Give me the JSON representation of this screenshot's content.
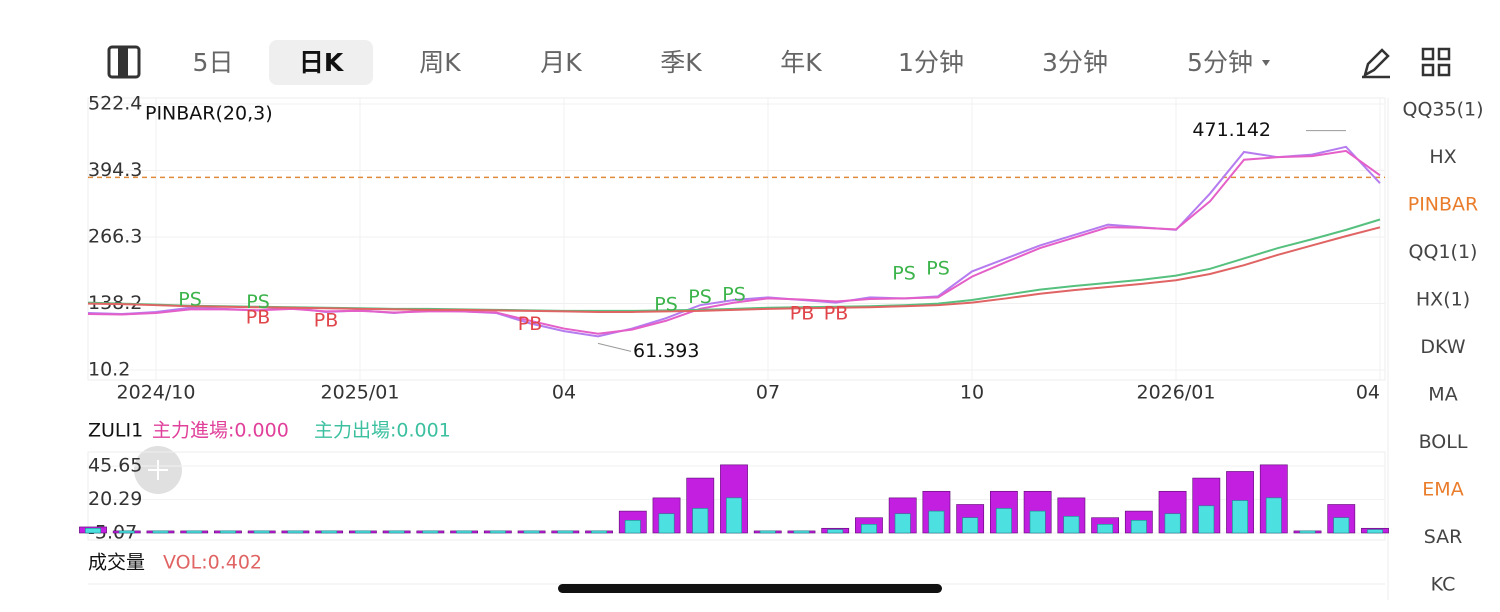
{
  "toolbar": {
    "tabs": [
      "5日",
      "日K",
      "周K",
      "月K",
      "季K",
      "年K",
      "1分钟",
      "3分钟",
      "5分钟"
    ],
    "selected": 1
  },
  "indicators": [
    {
      "label": "QQ35(1)",
      "active": false
    },
    {
      "label": "HX",
      "active": false
    },
    {
      "label": "PINBAR",
      "active": true
    },
    {
      "label": "QQ1(1)",
      "active": false
    },
    {
      "label": "HX(1)",
      "active": false
    },
    {
      "label": "DKW",
      "active": false
    },
    {
      "label": "MA",
      "active": false
    },
    {
      "label": "BOLL",
      "active": false
    },
    {
      "label": "EMA",
      "active": true
    },
    {
      "label": "SAR",
      "active": false
    },
    {
      "label": "KC",
      "active": false
    }
  ],
  "volume_panel": {
    "title": "成交量",
    "legend": "VOL:0.402"
  },
  "chart_data": [
    {
      "type": "line",
      "title": "PINBAR(20,3)",
      "categories": [
        null,
        null,
        "2024/10",
        null,
        null,
        null,
        null,
        null,
        "2025/01",
        null,
        null,
        null,
        null,
        null,
        "04",
        null,
        null,
        null,
        null,
        null,
        "07",
        null,
        null,
        null,
        null,
        null,
        "10",
        null,
        null,
        null,
        null,
        null,
        "2026/01",
        null,
        null,
        null,
        null,
        null,
        "04"
      ],
      "series": [
        {
          "color": "#b57cf0",
          "values": [
            120,
            118,
            122,
            130,
            128,
            125,
            130,
            122,
            125,
            120,
            125,
            123,
            120,
            100,
            85,
            75,
            90,
            110,
            135,
            145,
            150,
            145,
            140,
            150,
            148,
            152,
            200,
            225,
            250,
            270,
            290,
            285,
            280,
            350,
            430,
            420,
            425,
            440,
            370
          ]
        },
        {
          "color": "#e45fc8",
          "values": [
            118,
            117,
            120,
            127,
            127,
            125,
            128,
            123,
            124,
            121,
            123,
            123,
            121,
            105,
            90,
            80,
            88,
            105,
            128,
            140,
            148,
            146,
            142,
            147,
            148,
            150,
            190,
            218,
            245,
            265,
            285,
            284,
            281,
            335,
            415,
            420,
            422,
            432,
            385
          ]
        },
        {
          "color": "#56c07e",
          "values": [
            140,
            138,
            136,
            134,
            133,
            132,
            131,
            130,
            129,
            128,
            128,
            127,
            126,
            125,
            124,
            124,
            124,
            125,
            126,
            128,
            130,
            131,
            132,
            133,
            135,
            138,
            145,
            155,
            165,
            172,
            178,
            184,
            192,
            205,
            225,
            245,
            262,
            280,
            300
          ]
        },
        {
          "color": "#e06464",
          "values": [
            138,
            137,
            135,
            133,
            132,
            131,
            130,
            129,
            128,
            127,
            126,
            126,
            125,
            124,
            123,
            122,
            122,
            123,
            124,
            126,
            128,
            129,
            130,
            131,
            133,
            135,
            140,
            148,
            157,
            164,
            170,
            176,
            183,
            195,
            212,
            232,
            250,
            268,
            285
          ]
        }
      ],
      "ylim": [
        10.2,
        522.4
      ],
      "yticks": [
        522.4,
        394.3,
        266.3,
        138.2,
        10.2
      ],
      "reference_line": {
        "value": 381,
        "color": "#e08a3c"
      },
      "annotations": [
        {
          "value": 471.142,
          "index": 37
        },
        {
          "value": 61.393,
          "index": 15
        }
      ],
      "signals": [
        {
          "text": "PS",
          "index": 3,
          "value": 145,
          "color": "#3cb44b"
        },
        {
          "text": "PB",
          "index": 5,
          "value": 110,
          "color": "#e0454a"
        },
        {
          "text": "PS",
          "index": 5,
          "value": 140,
          "color": "#3cb44b"
        },
        {
          "text": "PB",
          "index": 7,
          "value": 105,
          "color": "#e0454a"
        },
        {
          "text": "PB",
          "index": 13,
          "value": 98,
          "color": "#e0454a"
        },
        {
          "text": "PS",
          "index": 17,
          "value": 135,
          "color": "#3cb44b"
        },
        {
          "text": "PS",
          "index": 18,
          "value": 150,
          "color": "#3cb44b"
        },
        {
          "text": "PS",
          "index": 19,
          "value": 155,
          "color": "#3cb44b"
        },
        {
          "text": "PB",
          "index": 21,
          "value": 118,
          "color": "#e0454a"
        },
        {
          "text": "PB",
          "index": 22,
          "value": 118,
          "color": "#e0454a"
        },
        {
          "text": "PS",
          "index": 24,
          "value": 195,
          "color": "#3cb44b"
        },
        {
          "text": "PS",
          "index": 25,
          "value": 205,
          "color": "#3cb44b"
        }
      ]
    },
    {
      "type": "bar",
      "title": "ZULI1",
      "legends": [
        {
          "text": "主力進場:0.000",
          "color": "#e0409a"
        },
        {
          "text": "主力出場:0.001",
          "color": "#3cc0a0"
        }
      ],
      "series": [
        {
          "color": "#c21fe0",
          "values": [
            -2,
            -5,
            -5,
            -5,
            -5,
            -5,
            -5,
            -5,
            -5,
            -5,
            -5,
            -5,
            -5,
            -5,
            -5,
            -5,
            10,
            20,
            35,
            45,
            -5,
            -5,
            -3,
            5,
            20,
            25,
            15,
            25,
            25,
            20,
            5,
            10,
            25,
            35,
            40,
            45,
            -5,
            15,
            -3
          ]
        },
        {
          "color": "#4de0e0",
          "values": [
            -3,
            -5,
            -5,
            -5,
            -5,
            -5,
            -5,
            -5,
            -5,
            -5,
            -5,
            -5,
            -5,
            -5,
            -5,
            -5,
            3,
            8,
            12,
            20,
            -5,
            -5,
            -4,
            0,
            8,
            10,
            5,
            12,
            10,
            6,
            0,
            3,
            8,
            14,
            18,
            20,
            -5,
            5,
            -4
          ]
        }
      ],
      "ylim": [
        -5.07,
        45.65
      ],
      "yticks": [
        45.65,
        20.29,
        -5.07
      ]
    }
  ]
}
